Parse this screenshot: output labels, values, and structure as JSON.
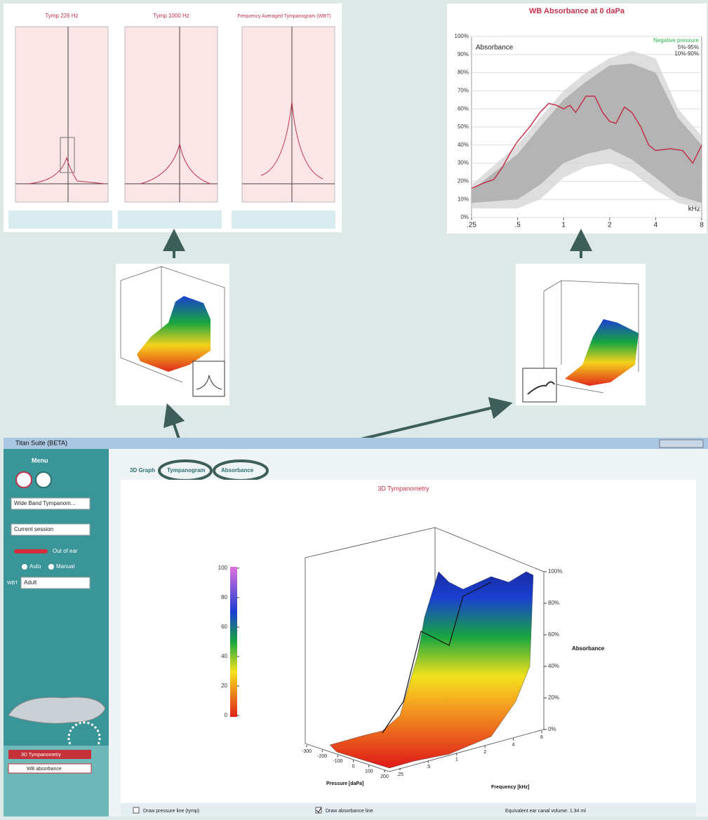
{
  "tymp_panels": [
    {
      "title": "Tymp 226 Hz"
    },
    {
      "title": "Tymp 1000 Hz"
    },
    {
      "title": "Frequency Averaged Tympanogram (WBT)"
    }
  ],
  "absorbance_chart": {
    "type": "line",
    "title": "WB Absorbance at 0 daPa",
    "y_label": "Absorbance",
    "x_label": "kHz",
    "xlim": [
      0.25,
      8
    ],
    "ylim": [
      0,
      100
    ],
    "log_x": true,
    "grid": true,
    "legend_position": "top-right",
    "xticks": [
      {
        "value": 0.25,
        "label": ".25"
      },
      {
        "value": 0.5,
        "label": ".5"
      },
      1,
      2,
      4,
      8
    ],
    "yticks": [
      {
        "value": 0,
        "label": "0%"
      },
      {
        "value": 10,
        "label": "10%"
      },
      {
        "value": 20,
        "label": "20%"
      },
      {
        "value": 30,
        "label": "30%"
      },
      {
        "value": 40,
        "label": "40%"
      },
      {
        "value": 50,
        "label": "50%"
      },
      {
        "value": 60,
        "label": "60%"
      },
      {
        "value": 70,
        "label": "70%"
      },
      {
        "value": 80,
        "label": "80%"
      },
      {
        "value": 90,
        "label": "90%"
      },
      {
        "value": 100,
        "label": "100%"
      }
    ],
    "legend_title": {
      "text": "Negative pressure",
      "color": "#2db34a"
    },
    "bands": [
      {
        "name": "5%-95%",
        "color": "#d6d6d6",
        "x": [
          0.25,
          0.5,
          0.7,
          1,
          1.4,
          2,
          2.8,
          4,
          5.6,
          8
        ],
        "lower": [
          5,
          5,
          10,
          22,
          28,
          30,
          25,
          15,
          8,
          5
        ],
        "upper": [
          18,
          40,
          55,
          70,
          80,
          88,
          92,
          88,
          60,
          45
        ]
      },
      {
        "name": "10%-90%",
        "color": "#a9a9a9",
        "x": [
          0.25,
          0.5,
          0.7,
          1,
          1.4,
          2,
          2.8,
          4,
          5.6,
          8
        ],
        "lower": [
          8,
          10,
          18,
          30,
          35,
          38,
          32,
          22,
          12,
          8
        ],
        "upper": [
          15,
          35,
          50,
          65,
          75,
          84,
          85,
          80,
          55,
          40
        ]
      }
    ],
    "series": [
      {
        "color": "#c0324a",
        "x": [
          0.25,
          0.3,
          0.35,
          0.4,
          0.45,
          0.5,
          0.6,
          0.7,
          0.8,
          0.9,
          1.0,
          1.1,
          1.2,
          1.4,
          1.6,
          1.8,
          2.0,
          2.2,
          2.5,
          2.8,
          3.2,
          3.6,
          4,
          5,
          6,
          7,
          8
        ],
        "values": [
          16,
          19,
          21,
          28,
          36,
          42,
          50,
          58,
          63,
          62,
          60,
          62,
          58,
          67,
          67,
          58,
          53,
          52,
          61,
          58,
          50,
          40,
          37,
          38,
          37,
          30,
          40
        ]
      }
    ]
  },
  "window": {
    "title": "Titan Suite (BETA)"
  },
  "sidebar": {
    "menu": "Menu",
    "protocol": "Wide Band Tympanom...",
    "session": "Current session",
    "probe_status": "Out of ear",
    "modes": [
      "Auto",
      "Manual"
    ],
    "wbt_label": "WBT",
    "age_group": "Adult",
    "tests": [
      "3D Tympanometry",
      "WB absorbance"
    ]
  },
  "tabs": [
    "3D Graph",
    "Tympanogram",
    "Absorbance"
  ],
  "graph3d": {
    "title": "3D Tympanometry",
    "colorbar_ticks": [
      0,
      20,
      40,
      60,
      80,
      100
    ],
    "z_label": "Absorbance",
    "z_ticks": [
      {
        "value": 0,
        "label": "0%"
      },
      {
        "value": 20,
        "label": "20%"
      },
      {
        "value": 40,
        "label": "40%"
      },
      {
        "value": 60,
        "label": "60%"
      },
      {
        "value": 80,
        "label": "80%"
      },
      {
        "value": 100,
        "label": "100%"
      }
    ],
    "x_label": "Pressure [daPa]",
    "x_ticks": [
      -300,
      -200,
      -100,
      0,
      100,
      200
    ],
    "y_label": "Frequency [kHz]",
    "y_ticks": [
      {
        "value": 0.25,
        "label": ".25"
      },
      {
        "value": 0.5,
        "label": ".5"
      },
      1,
      2,
      4,
      8
    ]
  },
  "footer": {
    "pressure_line": "Draw pressure line (tymp)",
    "absorbance_line": "Draw absorbance line",
    "ecv": "Equivalent ear canal volume: 1.34 ml"
  }
}
